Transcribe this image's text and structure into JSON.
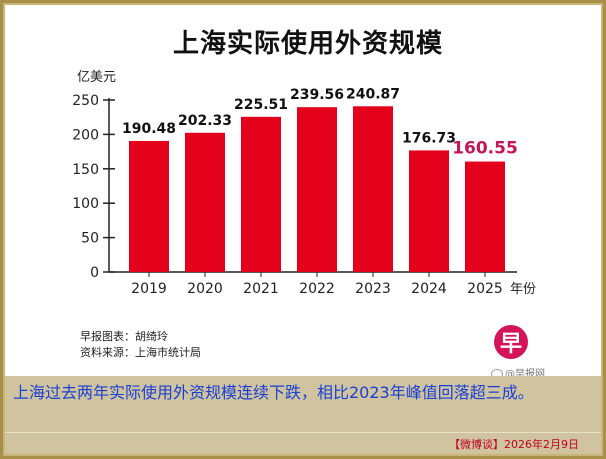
{
  "chart_data": {
    "type": "bar",
    "title": "上海实际使用外资规模",
    "ylabel": "亿美元",
    "xlabel": "年份",
    "ylim": [
      0,
      250
    ],
    "yticks": [
      0,
      50,
      100,
      150,
      200,
      250
    ],
    "categories": [
      "2019",
      "2020",
      "2021",
      "2022",
      "2023",
      "2024",
      "2025"
    ],
    "values": [
      190.48,
      202.33,
      225.51,
      239.56,
      240.87,
      176.73,
      160.55
    ],
    "value_labels": [
      "190.48",
      "202.33",
      "225.51",
      "239.56",
      "240.87",
      "176.73",
      "160.55"
    ],
    "bar_color": "#e3001b",
    "highlight_label_color": "#c4145a",
    "highlight_index": 6,
    "grid": false
  },
  "credits": {
    "designer": "早报图表：胡绮玲",
    "source": "资料来源：上海市统计局"
  },
  "watermark": "@早报网",
  "logo_glyph": "早",
  "caption": "上海过去两年实际使用外资规模连续下跌，相比2023年峰值回落超三成。",
  "footer_source": "【微博谈】2026年2月9日",
  "colors": {
    "frame": "#a88f4a",
    "caption_band": "#cfc3a0",
    "caption_text": "#1a3fd6",
    "footer_text": "#c00020",
    "logo": "#d4145a"
  }
}
